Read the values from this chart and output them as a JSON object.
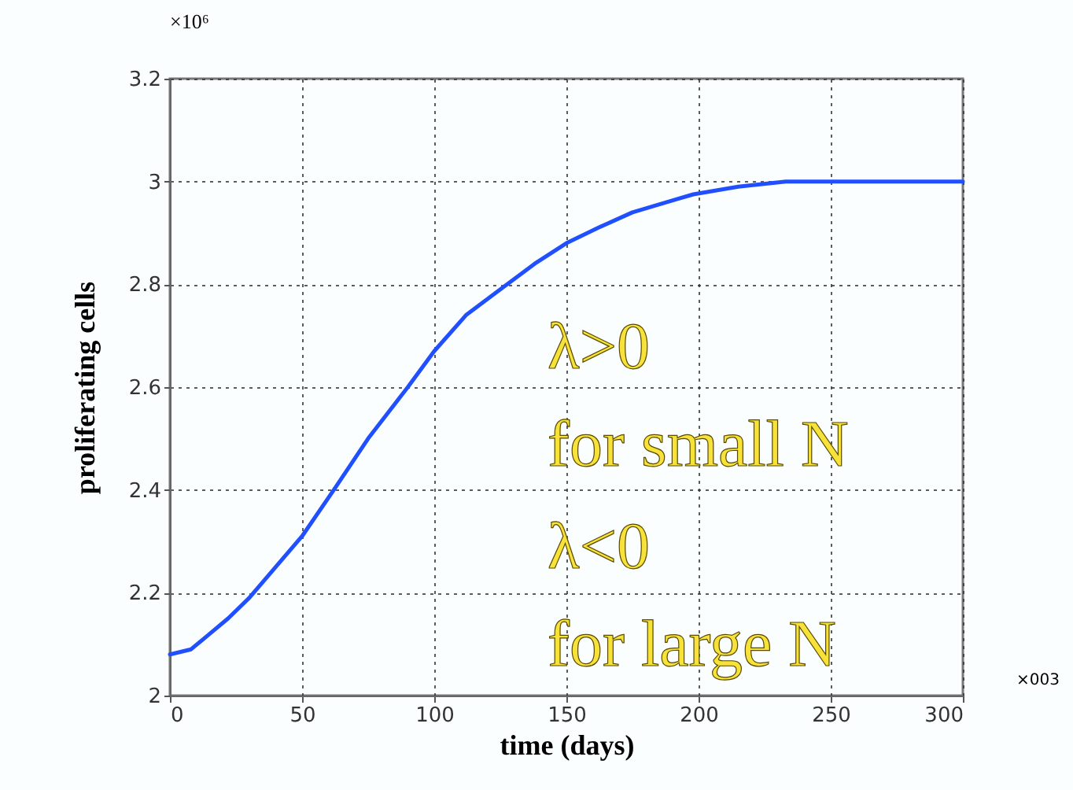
{
  "chart_data": {
    "type": "line",
    "xlabel": "time (days)",
    "ylabel": "proliferating cells",
    "x": [
      0,
      8,
      15,
      22,
      30,
      40,
      50,
      62,
      75,
      90,
      100,
      112,
      125,
      138,
      150,
      162,
      175,
      188,
      198,
      215,
      233,
      260,
      300
    ],
    "series": [
      {
        "color": "#1f4fff",
        "values": [
          2.08,
          2.09,
          2.12,
          2.15,
          2.19,
          2.25,
          2.31,
          2.4,
          2.5,
          2.6,
          2.67,
          2.74,
          2.79,
          2.84,
          2.88,
          2.91,
          2.94,
          2.96,
          2.975,
          2.99,
          3,
          3,
          3
        ]
      }
    ],
    "xlim": [
      0,
      300
    ],
    "xticks": [
      0,
      50,
      100,
      150,
      200,
      250,
      300
    ],
    "ylim": [
      2,
      3.2
    ],
    "yticks": [
      2,
      2.2,
      2.4,
      2.6,
      2.8,
      3,
      3.2
    ],
    "grid": true,
    "marker": "none",
    "line_style": "solid",
    "annotations": [
      "×10⁶",
      "×003",
      "λ>0",
      "for small N",
      "λ<0",
      "for large N"
    ]
  }
}
